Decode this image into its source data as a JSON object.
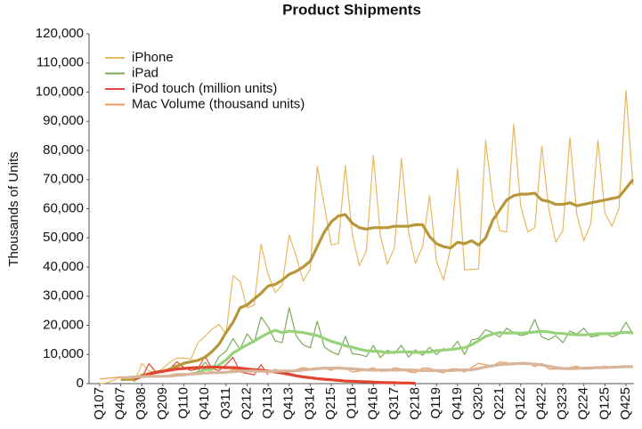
{
  "chart_data": {
    "type": "line",
    "title": "Product Shipments",
    "ylabel": "Thousands of Units",
    "categories": [
      "Q107",
      null,
      null,
      "Q407",
      null,
      null,
      "Q308",
      null,
      null,
      "Q209",
      null,
      null,
      "Q110",
      null,
      null,
      "Q410",
      null,
      null,
      "Q311",
      null,
      null,
      "Q212",
      null,
      null,
      "Q113",
      null,
      null,
      "Q413",
      null,
      null,
      "Q314",
      null,
      null,
      "Q215",
      null,
      null,
      "Q116",
      null,
      null,
      "Q416",
      null,
      null,
      "Q317",
      null,
      null,
      "Q218",
      null,
      null,
      "Q119",
      null,
      null,
      "Q419",
      null,
      null,
      "Q320",
      null,
      null,
      "Q221",
      null,
      null,
      "Q122",
      null,
      null,
      "Q422",
      null,
      null,
      "Q323",
      null,
      null,
      "Q224",
      null,
      null,
      "Q125",
      null,
      null,
      "Q425",
      null
    ],
    "ylim": [
      0,
      120000
    ],
    "yticks": [
      0,
      {
        "value": 10000,
        "label": "10,000"
      },
      {
        "value": 20000,
        "label": "20,000"
      },
      {
        "value": 30000,
        "label": "30,000"
      },
      {
        "value": 40000,
        "label": "40,000"
      },
      {
        "value": 50000,
        "label": "50,000"
      },
      {
        "value": 60000,
        "label": "60,000"
      },
      {
        "value": 70000,
        "label": "70,000"
      },
      {
        "value": 80000,
        "label": "80,000"
      },
      {
        "value": 90000,
        "label": "90,000"
      },
      {
        "value": 100000,
        "label": "100,000"
      },
      {
        "value": 110000,
        "label": "110,000"
      },
      {
        "value": 120000,
        "label": "120,000"
      }
    ],
    "grid": false,
    "legend": "upper left",
    "series": [
      {
        "name": "iPhone",
        "color": "#e8b860",
        "line_width": 1.2,
        "values": [
          0,
          270,
          1119,
          2315,
          1703,
          717,
          6892,
          4363,
          3793,
          5208,
          7367,
          8737,
          8752,
          8398,
          14102,
          16235,
          18647,
          20338,
          17073,
          37044,
          35064,
          26028,
          26910,
          47789,
          37430,
          31241,
          33797,
          51025,
          43719,
          35203,
          39272,
          74468,
          61170,
          47534,
          48046,
          74779,
          51193,
          40399,
          45513,
          78290,
          50763,
          41026,
          46677,
          77316,
          52217,
          41300,
          46889,
          64500,
          42000,
          35500,
          46500,
          73800,
          39000,
          39200,
          39300,
          83500,
          63000,
          52500,
          52000,
          89000,
          61000,
          52000,
          53500,
          81500,
          60000,
          48500,
          52500,
          84500,
          58000,
          49000,
          55000,
          83500,
          58500,
          54000,
          60000,
          100500,
          68000
        ]
      },
      {
        "name": "iPad",
        "color": "#7aab5a",
        "line_width": 1.2,
        "values": [
          null,
          null,
          null,
          null,
          null,
          null,
          null,
          null,
          null,
          null,
          null,
          null,
          null,
          3270,
          4188,
          7331,
          4694,
          9246,
          11123,
          15434,
          11798,
          17042,
          14036,
          22860,
          19477,
          14617,
          14079,
          26035,
          16350,
          13276,
          12316,
          21419,
          12623,
          10931,
          9883,
          16122,
          10251,
          9950,
          9267,
          13081,
          8922,
          11424,
          10326,
          13170,
          9113,
          11553,
          9699,
          12500,
          10000,
          12000,
          11500,
          14500,
          10000,
          15000,
          15500,
          18500,
          17500,
          16000,
          19000,
          17500,
          16500,
          17000,
          22000,
          16000,
          15000,
          16500,
          14000,
          18000,
          17000,
          19000,
          16000,
          16500,
          17500,
          16000,
          17000,
          21000,
          17000
        ]
      },
      {
        "name": "iPod touch (million units)",
        "color": "#e0483a",
        "line_width": 1.2,
        "values": [
          null,
          null,
          null,
          null,
          null,
          null,
          2000,
          6800,
          4000,
          4500,
          5000,
          7500,
          5500,
          4500,
          5000,
          9500,
          5000,
          4500,
          6500,
          9000,
          4000,
          3500,
          3000,
          6500,
          3000,
          null,
          null,
          null,
          null,
          null,
          null,
          null,
          null,
          null,
          null,
          null,
          null,
          null,
          null,
          null,
          null,
          null,
          null,
          null,
          null,
          null,
          null,
          null,
          null,
          null,
          null,
          null,
          null,
          null,
          null,
          null,
          null,
          null,
          null,
          null,
          null,
          null,
          null,
          null,
          null,
          null,
          null,
          null,
          null,
          null,
          null,
          null,
          null,
          null,
          null,
          null,
          null
        ]
      },
      {
        "name": "Mac Volume (thousand units)",
        "color": "#ec9a58",
        "line_width": 1.2,
        "values": [
          1600,
          1800,
          2000,
          2300,
          2300,
          2500,
          2600,
          2500,
          2200,
          2600,
          3000,
          3400,
          3400,
          3500,
          3500,
          3900,
          4100,
          3800,
          3800,
          4900,
          4600,
          4000,
          4000,
          4100,
          4000,
          4900,
          4100,
          4000,
          4800,
          5500,
          5100,
          5500,
          5200,
          4600,
          5700,
          5300,
          4000,
          4300,
          4900,
          5400,
          4200,
          4300,
          5400,
          5100,
          4100,
          3700,
          5300,
          5300,
          4200,
          3700,
          5000,
          5100,
          4000,
          5500,
          7000,
          6400,
          6200,
          7400,
          7200,
          6400,
          7200,
          7200,
          5800,
          7000,
          5000,
          5000,
          5000,
          5500,
          6000,
          5000,
          5000,
          5500,
          6000,
          5500,
          5500,
          6000,
          6000
        ]
      },
      {
        "color": "#b8963a",
        "line_width": 3.2,
        "values": [
          null,
          null,
          null,
          1400,
          1500,
          1500,
          2900,
          3400,
          4000,
          4200,
          5000,
          6000,
          7000,
          7500,
          8000,
          9000,
          11000,
          13500,
          17500,
          21000,
          26000,
          27000,
          29000,
          31000,
          33500,
          34000,
          35500,
          37500,
          38500,
          40000,
          42000,
          47000,
          52000,
          55500,
          57500,
          58000,
          55000,
          53500,
          53000,
          53500,
          53500,
          53500,
          54000,
          54000,
          54000,
          54500,
          54500,
          50500,
          48000,
          47000,
          46500,
          48500,
          48000,
          49000,
          47500,
          50000,
          56000,
          59500,
          63000,
          64500,
          65000,
          65000,
          65300,
          63000,
          62500,
          61500,
          61500,
          62000,
          61000,
          61500,
          62000,
          62500,
          63000,
          63500,
          64000,
          67000,
          70000
        ]
      },
      {
        "color": "#96d27a",
        "line_width": 3.2,
        "values": [
          null,
          null,
          null,
          null,
          null,
          null,
          null,
          null,
          null,
          null,
          null,
          null,
          null,
          3300,
          3700,
          4900,
          4900,
          6400,
          8100,
          10500,
          11900,
          13300,
          14600,
          16000,
          17300,
          18300,
          17500,
          18000,
          17800,
          17500,
          17000,
          16500,
          15500,
          14500,
          13800,
          13000,
          12500,
          11800,
          11300,
          11100,
          11000,
          10600,
          10800,
          10900,
          10900,
          10700,
          10800,
          10800,
          11300,
          11500,
          11700,
          12000,
          12300,
          13300,
          14700,
          16200,
          17000,
          17500,
          17300,
          17400,
          17300,
          17500,
          17700,
          18000,
          17700,
          17300,
          17200,
          16900,
          16800,
          16700,
          16900,
          17100,
          17100,
          17200,
          17400,
          17600,
          17400
        ]
      },
      {
        "color": "#e2452f",
        "line_width": 3.2,
        "values": [
          null,
          null,
          null,
          null,
          null,
          1500,
          2500,
          3200,
          3800,
          4200,
          4600,
          5000,
          5200,
          5400,
          5500,
          5600,
          5700,
          5600,
          5500,
          5500,
          5300,
          5000,
          4800,
          4600,
          4300,
          4000,
          3600,
          3200,
          2700,
          2300,
          2000,
          1700,
          1500,
          1300,
          1100,
          900,
          800,
          700,
          600,
          500,
          400,
          300,
          300,
          200,
          200,
          100,
          null,
          null,
          null,
          null,
          null,
          null,
          null,
          null,
          null,
          null,
          null,
          null,
          null,
          null,
          null,
          null,
          null,
          null,
          null,
          null,
          null,
          null,
          null,
          null,
          null,
          null,
          null,
          null,
          null,
          null,
          null
        ]
      },
      {
        "color": "#d8b49a",
        "line_width": 3.2,
        "values": [
          null,
          null,
          null,
          2000,
          2100,
          2300,
          2400,
          2500,
          2500,
          2500,
          2600,
          2800,
          3000,
          3300,
          3400,
          3600,
          3700,
          3800,
          3900,
          4100,
          4300,
          4300,
          4300,
          4200,
          4100,
          4200,
          4300,
          4300,
          4400,
          4700,
          4900,
          5100,
          5300,
          5300,
          5300,
          5200,
          5100,
          4900,
          4700,
          4600,
          4700,
          4700,
          4600,
          4700,
          4700,
          4600,
          4500,
          4500,
          4500,
          4500,
          4500,
          4600,
          4700,
          4700,
          5200,
          5700,
          6100,
          6500,
          6700,
          6800,
          6900,
          6800,
          6700,
          6400,
          6000,
          5500,
          5200,
          5100,
          5200,
          5300,
          5400,
          5500,
          5500,
          5600,
          5700,
          5800,
          5800
        ]
      }
    ]
  }
}
